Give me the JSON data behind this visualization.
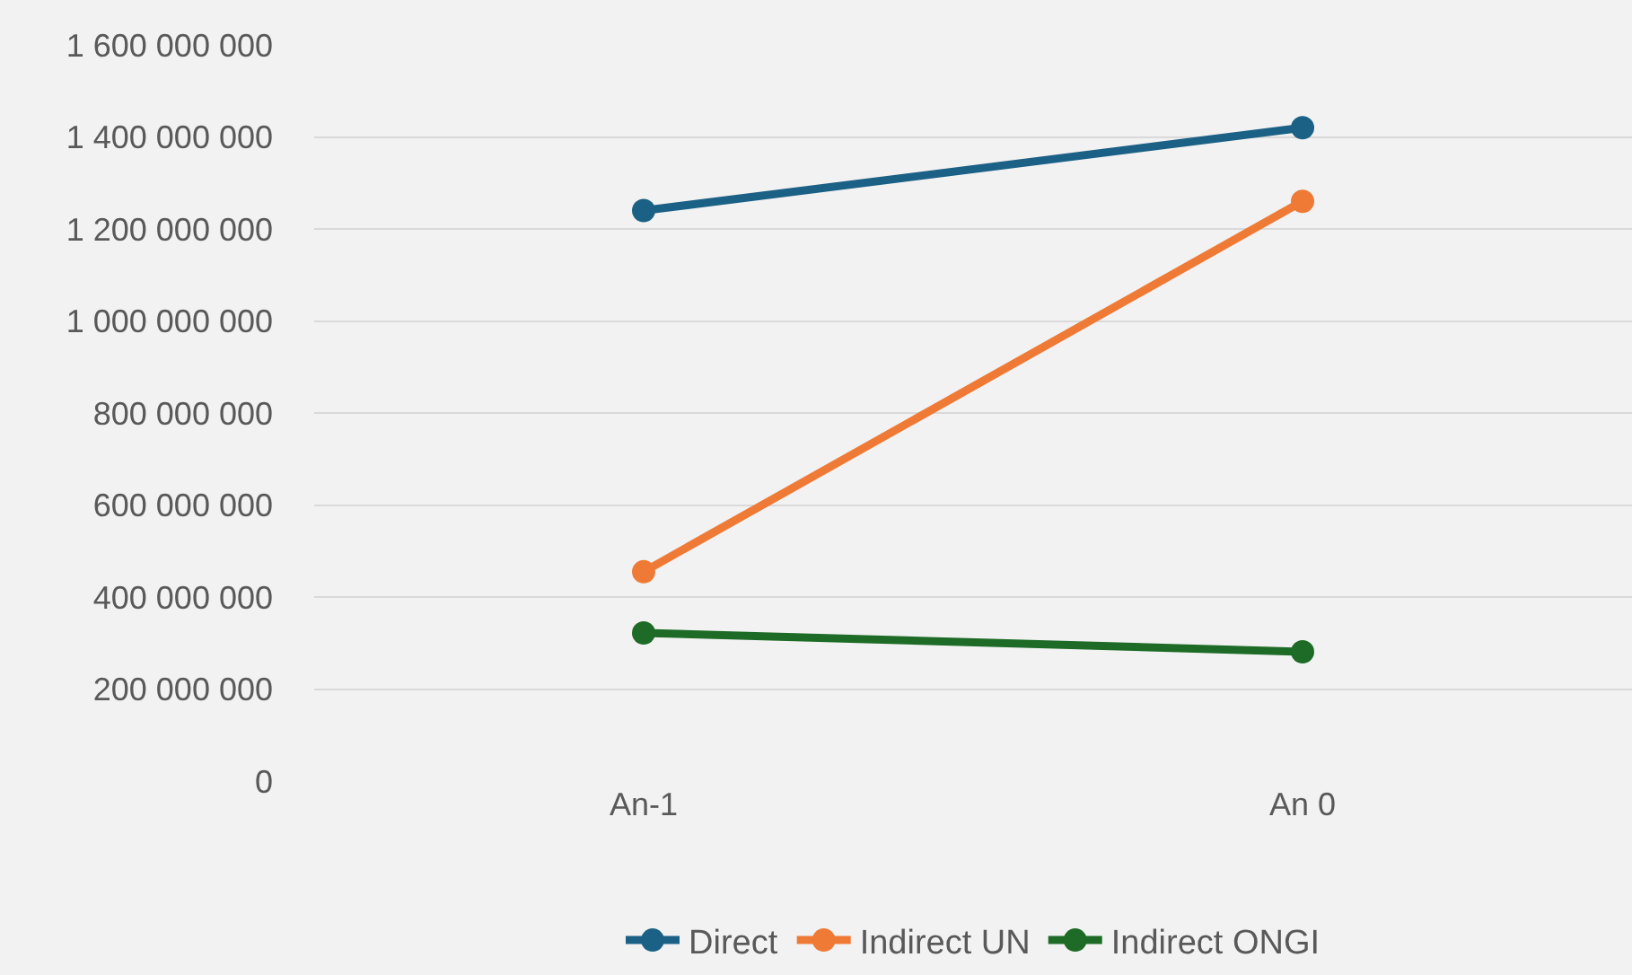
{
  "chart_data": {
    "type": "line",
    "categories": [
      "An-1",
      "An 0"
    ],
    "series": [
      {
        "name": "Direct",
        "color": "#1b6185",
        "values": [
          1240000000,
          1420000000
        ]
      },
      {
        "name": "Indirect UN",
        "color": "#ef7a36",
        "values": [
          455000000,
          1260000000
        ]
      },
      {
        "name": "Indirect ONGI",
        "color": "#1d6b26",
        "values": [
          322000000,
          281000000
        ]
      }
    ],
    "ylim": [
      0,
      1600000000
    ],
    "yticks": [
      0,
      {
        "value": 200000000,
        "label": "200 000 000"
      },
      {
        "value": 400000000,
        "label": "400 000 000"
      },
      {
        "value": 600000000,
        "label": "600 000 000"
      },
      {
        "value": 800000000,
        "label": "800 000 000"
      },
      {
        "value": 1000000000,
        "label": "1 000 000 000"
      },
      {
        "value": 1200000000,
        "label": "1 200 000 000"
      },
      {
        "value": 1400000000,
        "label": "1 400 000 000"
      },
      {
        "value": 1600000000,
        "label": "1 600 000 000"
      }
    ],
    "grid": "y",
    "legend": "bottom",
    "marker": "circle",
    "line_style": "solid"
  }
}
